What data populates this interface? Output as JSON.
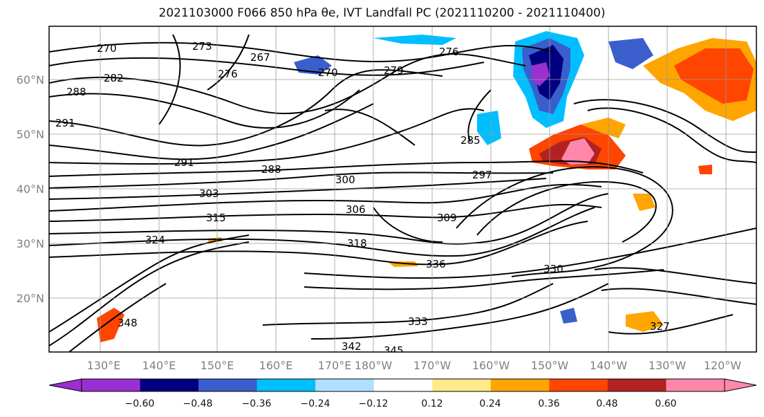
{
  "title": "2021103000 F066 850 hPa θe, IVT Landfall PC (2021110200 - 2021110400)",
  "map": {
    "lon_labels": [
      "130°E",
      "140°E",
      "150°E",
      "160°E",
      "170°E",
      "180°W",
      "170°W",
      "160°W",
      "150°W",
      "140°W",
      "130°W",
      "120°W"
    ],
    "lat_labels": [
      "60°N",
      "50°N",
      "40°N",
      "30°N",
      "20°N"
    ],
    "contour_labels": [
      "270",
      "273",
      "267",
      "282",
      "288",
      "291",
      "279",
      "276",
      "270",
      "276",
      "285",
      "288",
      "291",
      "300",
      "303",
      "297",
      "315",
      "306",
      "309",
      "324",
      "318",
      "336",
      "330",
      "327",
      "342",
      "345",
      "333",
      "348"
    ]
  },
  "colorbar": {
    "tick_labels": [
      "−0.60",
      "−0.48",
      "−0.36",
      "−0.24",
      "−0.12",
      "0.12",
      "0.24",
      "0.36",
      "0.48",
      "0.60"
    ],
    "colors": [
      "#9b30d0",
      "#000080",
      "#3a5fcd",
      "#00bfff",
      "#b0e0ff",
      "#ffffff",
      "#ffe98a",
      "#ffa500",
      "#ff4500",
      "#b22222",
      "#ff88aa"
    ]
  }
}
